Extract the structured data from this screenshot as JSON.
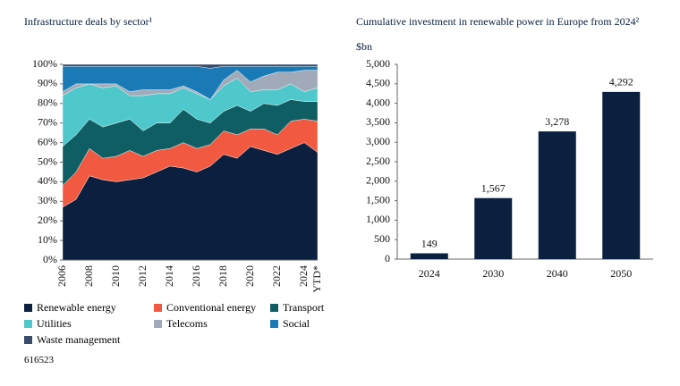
{
  "chart_data": [
    {
      "type": "stacked_area",
      "title": "Infrastructure deals by sector¹",
      "categories": [
        "2006",
        null,
        "2008",
        null,
        "2010",
        null,
        "2012",
        null,
        "2014",
        null,
        "2016",
        null,
        "2018",
        null,
        "2020",
        null,
        "2022",
        null,
        "2024",
        "YTD*"
      ],
      "series": [
        {
          "name": "Renewable energy",
          "color": "#0b1f3f",
          "values": [
            27,
            31,
            43,
            41,
            40,
            41,
            42,
            45,
            48,
            47,
            45,
            48,
            54,
            52,
            58,
            56,
            54,
            57,
            60,
            55
          ]
        },
        {
          "name": "Conventional energy",
          "color": "#f15a40",
          "values": [
            11,
            14,
            14,
            11,
            13,
            15,
            11,
            11,
            9,
            13,
            12,
            11,
            12,
            12,
            9,
            11,
            10,
            14,
            12,
            16
          ]
        },
        {
          "name": "Transport",
          "color": "#0f5e63",
          "values": [
            20,
            19,
            15,
            16,
            17,
            16,
            13,
            14,
            13,
            17,
            15,
            11,
            10,
            15,
            9,
            13,
            15,
            11,
            9,
            10
          ]
        },
        {
          "name": "Utilities",
          "color": "#4fc8cc",
          "values": [
            26,
            24,
            18,
            20,
            19,
            12,
            18,
            15,
            15,
            11,
            13,
            12,
            13,
            14,
            10,
            7,
            8,
            8,
            5,
            7
          ]
        },
        {
          "name": "Telecoms",
          "color": "#a0aab8",
          "values": [
            2,
            2,
            0,
            2,
            1,
            2,
            3,
            2,
            2,
            1,
            1,
            0,
            3,
            4,
            5,
            7,
            9,
            6,
            11,
            9
          ]
        },
        {
          "name": "Social",
          "color": "#1a7ab5",
          "values": [
            13,
            9,
            9,
            9,
            9,
            13,
            12,
            12,
            12,
            10,
            13,
            16,
            7,
            2,
            8,
            5,
            3,
            3,
            2,
            2
          ]
        },
        {
          "name": "Waste management",
          "color": "#3a4a6b",
          "values": [
            1,
            1,
            1,
            1,
            1,
            1,
            1,
            1,
            1,
            1,
            1,
            2,
            1,
            1,
            1,
            1,
            1,
            1,
            1,
            1
          ]
        }
      ],
      "ylim": [
        0,
        100
      ],
      "yticks": [
        {
          "value": 0,
          "label": "0%"
        },
        {
          "value": 10,
          "label": "10%"
        },
        {
          "value": 20,
          "label": "20%"
        },
        {
          "value": 30,
          "label": "30%"
        },
        {
          "value": 40,
          "label": "40%"
        },
        {
          "value": 50,
          "label": "50%"
        },
        {
          "value": 60,
          "label": "60%"
        },
        {
          "value": 70,
          "label": "70%"
        },
        {
          "value": 80,
          "label": "80%"
        },
        {
          "value": 90,
          "label": "90%"
        },
        {
          "value": 100,
          "label": "100%"
        }
      ]
    },
    {
      "type": "bar",
      "title": "Cumulative investment in renewable power in Europe from 2024²",
      "y_label": "$bn",
      "categories": [
        "2024",
        "2030",
        "2040",
        "2050"
      ],
      "values": [
        149,
        1567,
        3278,
        4292
      ],
      "value_labels": [
        "149",
        "1,567",
        "3,278",
        "4,292"
      ],
      "color": "#0b1f3f",
      "ylim": [
        0,
        5000
      ],
      "yticks": [
        0,
        500,
        {
          "value": 1000,
          "label": "1,000"
        },
        {
          "value": 1500,
          "label": "1,500"
        },
        {
          "value": 2000,
          "label": "2,000"
        },
        {
          "value": 2500,
          "label": "2,500"
        },
        {
          "value": 3000,
          "label": "3,000"
        },
        {
          "value": 3500,
          "label": "3,500"
        },
        {
          "value": 4000,
          "label": "4,000"
        },
        {
          "value": 4500,
          "label": "4,500"
        },
        {
          "value": 5000,
          "label": "5,000"
        }
      ]
    }
  ],
  "footnote": "616523"
}
